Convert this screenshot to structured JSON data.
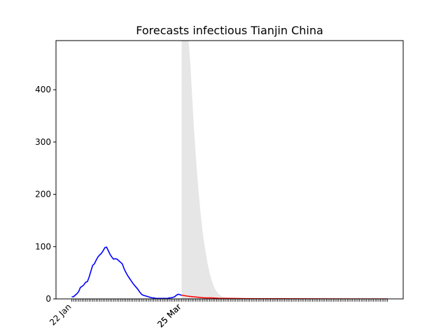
{
  "chart_data": {
    "type": "line",
    "title": "Forecasts infectious Tianjin China",
    "xlabel": "",
    "ylabel": "",
    "ylim": [
      0,
      494
    ],
    "y_ticks": [
      0,
      100,
      200,
      300,
      400
    ],
    "x_tick_labels": [
      {
        "day": 0,
        "label": "22 Jan"
      },
      {
        "day": 63,
        "label": "25 Mar"
      },
      {
        "day": 63,
        "label": "25 Mar"
      }
    ],
    "x_range_days": [
      -9,
      190
    ],
    "x_minor_ticks_days": [
      0,
      181
    ],
    "forecast_start_day": 63,
    "grid": false,
    "series": [
      {
        "role": "observed",
        "color": "#0000ff",
        "points": [
          [
            0,
            4
          ],
          [
            1,
            4
          ],
          [
            2,
            7
          ],
          [
            3,
            10
          ],
          [
            4,
            14
          ],
          [
            5,
            22
          ],
          [
            6,
            24
          ],
          [
            7,
            27
          ],
          [
            8,
            32
          ],
          [
            9,
            33
          ],
          [
            10,
            42
          ],
          [
            11,
            53
          ],
          [
            12,
            64
          ],
          [
            13,
            67
          ],
          [
            14,
            74
          ],
          [
            15,
            80
          ],
          [
            16,
            84
          ],
          [
            17,
            87
          ],
          [
            18,
            92
          ],
          [
            19,
            98
          ],
          [
            20,
            99
          ],
          [
            21,
            92
          ],
          [
            22,
            85
          ],
          [
            23,
            80
          ],
          [
            24,
            76
          ],
          [
            25,
            77
          ],
          [
            26,
            76
          ],
          [
            27,
            73
          ],
          [
            28,
            70
          ],
          [
            29,
            67
          ],
          [
            30,
            58
          ],
          [
            31,
            51
          ],
          [
            32,
            45
          ],
          [
            33,
            40
          ],
          [
            34,
            35
          ],
          [
            35,
            30
          ],
          [
            36,
            26
          ],
          [
            37,
            22
          ],
          [
            38,
            18
          ],
          [
            39,
            13
          ],
          [
            40,
            9
          ],
          [
            41,
            7
          ],
          [
            42,
            6
          ],
          [
            43,
            5
          ],
          [
            44,
            4
          ],
          [
            45,
            3
          ],
          [
            46,
            2
          ],
          [
            47,
            2
          ],
          [
            48,
            1
          ],
          [
            49,
            1
          ],
          [
            50,
            1
          ],
          [
            51,
            1
          ],
          [
            52,
            1
          ],
          [
            53,
            1
          ],
          [
            54,
            1
          ],
          [
            55,
            1
          ],
          [
            56,
            2
          ],
          [
            57,
            2
          ],
          [
            58,
            3
          ],
          [
            59,
            4
          ],
          [
            60,
            7
          ],
          [
            61,
            9
          ],
          [
            62,
            8
          ],
          [
            63,
            7
          ]
        ]
      },
      {
        "role": "forecast",
        "color": "#ff0000",
        "points": [
          [
            63,
            7
          ],
          [
            65,
            6
          ],
          [
            67,
            5
          ],
          [
            70,
            4
          ],
          [
            73,
            3
          ],
          [
            76,
            2
          ],
          [
            80,
            2
          ],
          [
            85,
            1
          ],
          [
            90,
            1
          ],
          [
            100,
            0.5
          ],
          [
            110,
            0.3
          ],
          [
            120,
            0.2
          ],
          [
            140,
            0.1
          ],
          [
            160,
            0
          ],
          [
            181,
            0
          ]
        ]
      }
    ],
    "band": {
      "role": "forecast-interval",
      "color": "#e6e6e6",
      "upper": [
        [
          63,
          494
        ],
        [
          67,
          494
        ],
        [
          68,
          450
        ],
        [
          69,
          390
        ],
        [
          70,
          330
        ],
        [
          71,
          280
        ],
        [
          72,
          235
        ],
        [
          73,
          195
        ],
        [
          74,
          160
        ],
        [
          75,
          130
        ],
        [
          76,
          105
        ],
        [
          77,
          85
        ],
        [
          78,
          66
        ],
        [
          79,
          50
        ],
        [
          80,
          38
        ],
        [
          81,
          28
        ],
        [
          82,
          20
        ],
        [
          83,
          14
        ],
        [
          84,
          10
        ],
        [
          85,
          7
        ],
        [
          86,
          5
        ],
        [
          88,
          3
        ],
        [
          90,
          2
        ],
        [
          95,
          1
        ],
        [
          100,
          0.5
        ],
        [
          181,
          0
        ]
      ],
      "lower": [
        [
          63,
          0
        ],
        [
          181,
          0
        ]
      ]
    }
  }
}
